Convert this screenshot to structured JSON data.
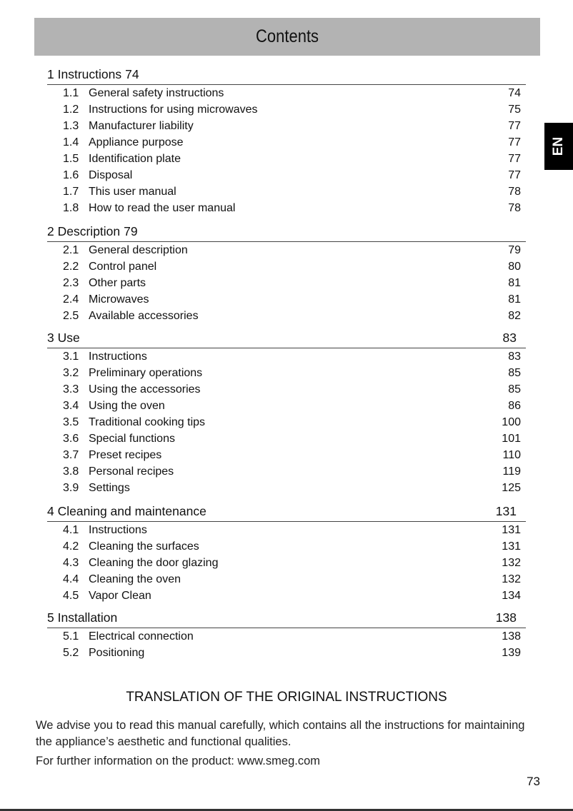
{
  "header": {
    "title": "Contents"
  },
  "language_tab": "EN",
  "sections": [
    {
      "number": "1",
      "title": "Instructions",
      "page": "74",
      "inline_page": true,
      "entries": [
        {
          "number": "1.1",
          "title": "General safety instructions",
          "page": "74"
        },
        {
          "number": "1.2",
          "title": "Instructions for using microwaves",
          "page": "75"
        },
        {
          "number": "1.3",
          "title": "Manufacturer liability",
          "page": "77"
        },
        {
          "number": "1.4",
          "title": "Appliance purpose",
          "page": "77"
        },
        {
          "number": "1.5",
          "title": "Identification plate",
          "page": "77"
        },
        {
          "number": "1.6",
          "title": "Disposal",
          "page": "77"
        },
        {
          "number": "1.7",
          "title": "This user manual",
          "page": "78"
        },
        {
          "number": "1.8",
          "title": "How to read the user manual",
          "page": "78"
        }
      ]
    },
    {
      "number": "2",
      "title": "Description",
      "page": "79",
      "inline_page": true,
      "entries": [
        {
          "number": "2.1",
          "title": "General description",
          "page": "79"
        },
        {
          "number": "2.2",
          "title": "Control panel",
          "page": "80"
        },
        {
          "number": "2.3",
          "title": "Other parts",
          "page": "81"
        },
        {
          "number": "2.4",
          "title": "Microwaves",
          "page": "81"
        },
        {
          "number": "2.5",
          "title": "Available accessories",
          "page": "82"
        }
      ]
    },
    {
      "number": "3",
      "title": "Use",
      "page": "83",
      "inline_page": false,
      "entries": [
        {
          "number": "3.1",
          "title": "Instructions",
          "page": "83"
        },
        {
          "number": "3.2",
          "title": "Preliminary operations",
          "page": "85"
        },
        {
          "number": "3.3",
          "title": "Using the accessories",
          "page": "85"
        },
        {
          "number": "3.4",
          "title": "Using the oven",
          "page": "86"
        },
        {
          "number": "3.5",
          "title": "Traditional cooking tips",
          "page": "100"
        },
        {
          "number": "3.6",
          "title": "Special functions",
          "page": "101"
        },
        {
          "number": "3.7",
          "title": "Preset recipes",
          "page": "110"
        },
        {
          "number": "3.8",
          "title": "Personal recipes",
          "page": "119"
        },
        {
          "number": "3.9",
          "title": "Settings",
          "page": "125"
        }
      ]
    },
    {
      "number": "4",
      "title": "Cleaning and maintenance",
      "page": "131",
      "inline_page": false,
      "entries": [
        {
          "number": "4.1",
          "title": "Instructions",
          "page": "131"
        },
        {
          "number": "4.2",
          "title": "Cleaning the surfaces",
          "page": "131"
        },
        {
          "number": "4.3",
          "title": "Cleaning the door glazing",
          "page": "132"
        },
        {
          "number": "4.4",
          "title": "Cleaning the oven",
          "page": "132"
        },
        {
          "number": "4.5",
          "title": "Vapor Clean",
          "page": "134"
        }
      ]
    },
    {
      "number": "5",
      "title": "Installation",
      "page": "138",
      "inline_page": false,
      "entries": [
        {
          "number": "5.1",
          "title": "Electrical connection",
          "page": "138"
        },
        {
          "number": "5.2",
          "title": "Positioning",
          "page": "139"
        }
      ]
    }
  ],
  "footer": {
    "translation_heading": "TRANSLATION OF THE ORIGINAL INSTRUCTIONS",
    "advice": "We advise you to read this manual carefully, which contains all the instructions for maintaining the appliance’s aesthetic and functional qualities.",
    "info": "For further information on the product: www.smeg.com",
    "page_number": "73"
  }
}
